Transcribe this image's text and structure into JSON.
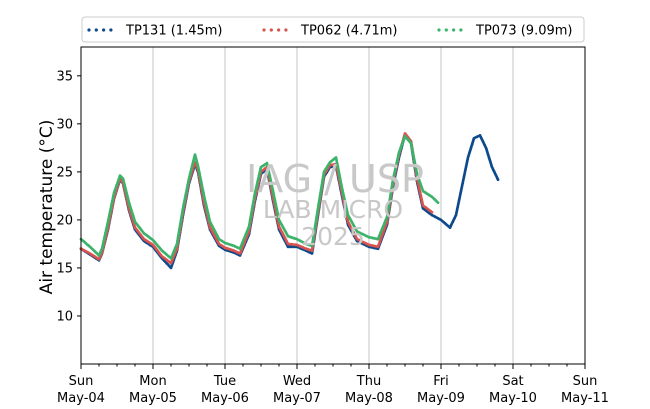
{
  "chart_data": {
    "type": "line",
    "title": "",
    "ylabel": "Air temperature (°C)",
    "xlabel": "",
    "ylim": [
      5,
      38
    ],
    "xlim": [
      "2025-05-04T00:00",
      "2025-05-11T00:00"
    ],
    "yticks": [
      10,
      15,
      20,
      25,
      30,
      35
    ],
    "xticks": [
      {
        "date": "2025-05-04T00:00",
        "day": "Sun",
        "date_label": "May-04"
      },
      {
        "date": "2025-05-05T00:00",
        "day": "Mon",
        "date_label": "May-05"
      },
      {
        "date": "2025-05-06T00:00",
        "day": "Tue",
        "date_label": "May-06"
      },
      {
        "date": "2025-05-07T00:00",
        "day": "Wed",
        "date_label": "May-07"
      },
      {
        "date": "2025-05-08T00:00",
        "day": "Thu",
        "date_label": "May-08"
      },
      {
        "date": "2025-05-09T00:00",
        "day": "Fri",
        "date_label": "May-09"
      },
      {
        "date": "2025-05-10T00:00",
        "day": "Sat",
        "date_label": "May-10"
      },
      {
        "date": "2025-05-11T00:00",
        "day": "Sun",
        "date_label": "May-11"
      }
    ],
    "vertical_grid": true,
    "legend_position": "top, above plot",
    "watermark": [
      "IAG / USP",
      "LAB MICRO",
      "2025"
    ],
    "series": [
      {
        "name": "TP131 (1.45m)",
        "color": "#0c4a8c",
        "points": [
          [
            "2025-05-04T00:00",
            17.0
          ],
          [
            "2025-05-04T03:00",
            16.4
          ],
          [
            "2025-05-04T06:00",
            15.8
          ],
          [
            "2025-05-04T07:00",
            16.5
          ],
          [
            "2025-05-04T09:00",
            19.0
          ],
          [
            "2025-05-04T11:00",
            22.2
          ],
          [
            "2025-05-04T13:00",
            24.2
          ],
          [
            "2025-05-04T14:00",
            23.8
          ],
          [
            "2025-05-04T16:00",
            21.0
          ],
          [
            "2025-05-04T18:00",
            19.0
          ],
          [
            "2025-05-04T21:00",
            17.8
          ],
          [
            "2025-05-05T00:00",
            17.2
          ],
          [
            "2025-05-05T03:00",
            16.0
          ],
          [
            "2025-05-05T06:00",
            15.0
          ],
          [
            "2025-05-05T08:00",
            16.8
          ],
          [
            "2025-05-05T10:00",
            20.5
          ],
          [
            "2025-05-05T12:00",
            23.8
          ],
          [
            "2025-05-05T14:00",
            25.8
          ],
          [
            "2025-05-05T15:00",
            25.0
          ],
          [
            "2025-05-05T17:00",
            21.5
          ],
          [
            "2025-05-05T19:00",
            19.0
          ],
          [
            "2025-05-05T22:00",
            17.3
          ],
          [
            "2025-05-06T00:00",
            16.9
          ],
          [
            "2025-05-06T03:00",
            16.6
          ],
          [
            "2025-05-06T05:00",
            16.3
          ],
          [
            "2025-05-06T08:00",
            18.5
          ],
          [
            "2025-05-06T10:00",
            22.0
          ],
          [
            "2025-05-06T12:00",
            24.8
          ],
          [
            "2025-05-06T14:00",
            25.3
          ],
          [
            "2025-05-06T16:00",
            22.0
          ],
          [
            "2025-05-06T18:00",
            19.0
          ],
          [
            "2025-05-06T21:00",
            17.2
          ],
          [
            "2025-05-07T00:00",
            17.2
          ],
          [
            "2025-05-07T03:00",
            16.8
          ],
          [
            "2025-05-07T05:00",
            16.5
          ],
          [
            "2025-05-07T07:00",
            20.5
          ],
          [
            "2025-05-07T09:00",
            24.5
          ],
          [
            "2025-05-07T11:00",
            25.5
          ],
          [
            "2025-05-07T13:00",
            25.6
          ],
          [
            "2025-05-07T15:00",
            22.5
          ],
          [
            "2025-05-07T17:00",
            19.5
          ],
          [
            "2025-05-07T20:00",
            17.8
          ],
          [
            "2025-05-08T00:00",
            17.2
          ],
          [
            "2025-05-08T03:00",
            17.0
          ],
          [
            "2025-05-08T06:00",
            19.5
          ],
          [
            "2025-05-08T08:00",
            23.5
          ],
          [
            "2025-05-08T10:00",
            26.5
          ],
          [
            "2025-05-08T12:00",
            28.9
          ],
          [
            "2025-05-08T14:00",
            28.0
          ],
          [
            "2025-05-08T16:00",
            24.0
          ],
          [
            "2025-05-08T18:00",
            21.2
          ],
          [
            "2025-05-08T21:00",
            20.5
          ],
          [
            "2025-05-09T00:00",
            20.0
          ],
          [
            "2025-05-09T03:00",
            19.2
          ],
          [
            "2025-05-09T05:00",
            20.5
          ],
          [
            "2025-05-09T07:00",
            23.5
          ],
          [
            "2025-05-09T09:00",
            26.5
          ],
          [
            "2025-05-09T11:00",
            28.5
          ],
          [
            "2025-05-09T13:00",
            28.8
          ],
          [
            "2025-05-09T15:00",
            27.5
          ],
          [
            "2025-05-09T17:00",
            25.5
          ],
          [
            "2025-05-09T19:00",
            24.2
          ]
        ]
      },
      {
        "name": "TP062 (4.71m)",
        "color": "#d9534f",
        "points": [
          [
            "2025-05-04T00:00",
            17.0
          ],
          [
            "2025-05-04T03:00",
            16.5
          ],
          [
            "2025-05-04T06:00",
            15.9
          ],
          [
            "2025-05-04T07:00",
            16.6
          ],
          [
            "2025-05-04T09:00",
            19.2
          ],
          [
            "2025-05-04T11:00",
            22.3
          ],
          [
            "2025-05-04T13:00",
            24.3
          ],
          [
            "2025-05-04T14:00",
            23.9
          ],
          [
            "2025-05-04T16:00",
            21.2
          ],
          [
            "2025-05-04T18:00",
            19.2
          ],
          [
            "2025-05-04T21:00",
            18.0
          ],
          [
            "2025-05-05T00:00",
            17.4
          ],
          [
            "2025-05-05T03:00",
            16.2
          ],
          [
            "2025-05-05T06:00",
            15.5
          ],
          [
            "2025-05-05T08:00",
            17.0
          ],
          [
            "2025-05-05T10:00",
            20.8
          ],
          [
            "2025-05-05T12:00",
            24.0
          ],
          [
            "2025-05-05T14:00",
            26.0
          ],
          [
            "2025-05-05T15:00",
            25.2
          ],
          [
            "2025-05-05T17:00",
            21.8
          ],
          [
            "2025-05-05T19:00",
            19.2
          ],
          [
            "2025-05-05T22:00",
            17.5
          ],
          [
            "2025-05-06T00:00",
            17.1
          ],
          [
            "2025-05-06T03:00",
            16.8
          ],
          [
            "2025-05-06T05:00",
            16.5
          ],
          [
            "2025-05-06T08:00",
            18.8
          ],
          [
            "2025-05-06T10:00",
            22.3
          ],
          [
            "2025-05-06T12:00",
            25.0
          ],
          [
            "2025-05-06T14:00",
            25.5
          ],
          [
            "2025-05-06T16:00",
            22.3
          ],
          [
            "2025-05-06T18:00",
            19.3
          ],
          [
            "2025-05-06T21:00",
            17.5
          ],
          [
            "2025-05-07T00:00",
            17.4
          ],
          [
            "2025-05-07T03:00",
            17.0
          ],
          [
            "2025-05-07T05:00",
            16.8
          ],
          [
            "2025-05-07T07:00",
            20.8
          ],
          [
            "2025-05-07T09:00",
            24.7
          ],
          [
            "2025-05-07T11:00",
            25.7
          ],
          [
            "2025-05-07T13:00",
            25.8
          ],
          [
            "2025-05-07T15:00",
            22.8
          ],
          [
            "2025-05-07T17:00",
            19.8
          ],
          [
            "2025-05-07T20:00",
            18.0
          ],
          [
            "2025-05-08T00:00",
            17.4
          ],
          [
            "2025-05-08T03:00",
            17.2
          ],
          [
            "2025-05-08T06:00",
            19.8
          ],
          [
            "2025-05-08T08:00",
            23.8
          ],
          [
            "2025-05-08T10:00",
            26.8
          ],
          [
            "2025-05-08T12:00",
            29.0
          ],
          [
            "2025-05-08T14:00",
            28.2
          ],
          [
            "2025-05-08T16:00",
            24.3
          ],
          [
            "2025-05-08T18:00",
            21.5
          ],
          [
            "2025-05-08T21:00",
            20.8
          ]
        ]
      },
      {
        "name": "TP073 (9.09m)",
        "color": "#3cb36a",
        "points": [
          [
            "2025-05-04T00:00",
            18.0
          ],
          [
            "2025-05-04T03:00",
            17.2
          ],
          [
            "2025-05-04T06:00",
            16.3
          ],
          [
            "2025-05-04T07:00",
            17.0
          ],
          [
            "2025-05-04T09:00",
            19.8
          ],
          [
            "2025-05-04T11:00",
            22.8
          ],
          [
            "2025-05-04T13:00",
            24.6
          ],
          [
            "2025-05-04T14:00",
            24.3
          ],
          [
            "2025-05-04T16:00",
            21.8
          ],
          [
            "2025-05-04T18:00",
            19.8
          ],
          [
            "2025-05-04T21:00",
            18.6
          ],
          [
            "2025-05-05T00:00",
            17.9
          ],
          [
            "2025-05-05T03:00",
            16.8
          ],
          [
            "2025-05-05T06:00",
            16.0
          ],
          [
            "2025-05-05T08:00",
            17.5
          ],
          [
            "2025-05-05T10:00",
            21.2
          ],
          [
            "2025-05-05T12:00",
            24.3
          ],
          [
            "2025-05-05T14:00",
            26.8
          ],
          [
            "2025-05-05T15:00",
            25.6
          ],
          [
            "2025-05-05T17:00",
            22.5
          ],
          [
            "2025-05-05T19:00",
            19.8
          ],
          [
            "2025-05-05T22:00",
            18.0
          ],
          [
            "2025-05-06T00:00",
            17.6
          ],
          [
            "2025-05-06T03:00",
            17.3
          ],
          [
            "2025-05-06T05:00",
            17.0
          ],
          [
            "2025-05-06T08:00",
            19.3
          ],
          [
            "2025-05-06T10:00",
            22.8
          ],
          [
            "2025-05-06T12:00",
            25.5
          ],
          [
            "2025-05-06T14:00",
            25.9
          ],
          [
            "2025-05-06T16:00",
            23.0
          ],
          [
            "2025-05-06T18:00",
            20.0
          ],
          [
            "2025-05-06T21:00",
            18.3
          ],
          [
            "2025-05-07T00:00",
            18.0
          ],
          [
            "2025-05-07T03:00",
            17.5
          ],
          [
            "2025-05-07T05:00",
            17.3
          ],
          [
            "2025-05-07T07:00",
            21.2
          ],
          [
            "2025-05-07T09:00",
            25.0
          ],
          [
            "2025-05-07T11:00",
            26.0
          ],
          [
            "2025-05-07T13:00",
            26.5
          ],
          [
            "2025-05-07T15:00",
            23.3
          ],
          [
            "2025-05-07T17:00",
            20.5
          ],
          [
            "2025-05-07T20:00",
            18.8
          ],
          [
            "2025-05-08T00:00",
            18.2
          ],
          [
            "2025-05-08T03:00",
            18.0
          ],
          [
            "2025-05-08T06:00",
            20.3
          ],
          [
            "2025-05-08T08:00",
            24.2
          ],
          [
            "2025-05-08T10:00",
            27.0
          ],
          [
            "2025-05-08T12:00",
            28.7
          ],
          [
            "2025-05-08T14:00",
            28.0
          ],
          [
            "2025-05-08T16:00",
            24.8
          ],
          [
            "2025-05-08T18:00",
            23.0
          ],
          [
            "2025-05-08T21:00",
            22.4
          ],
          [
            "2025-05-08T23:00",
            21.8
          ]
        ]
      }
    ]
  }
}
